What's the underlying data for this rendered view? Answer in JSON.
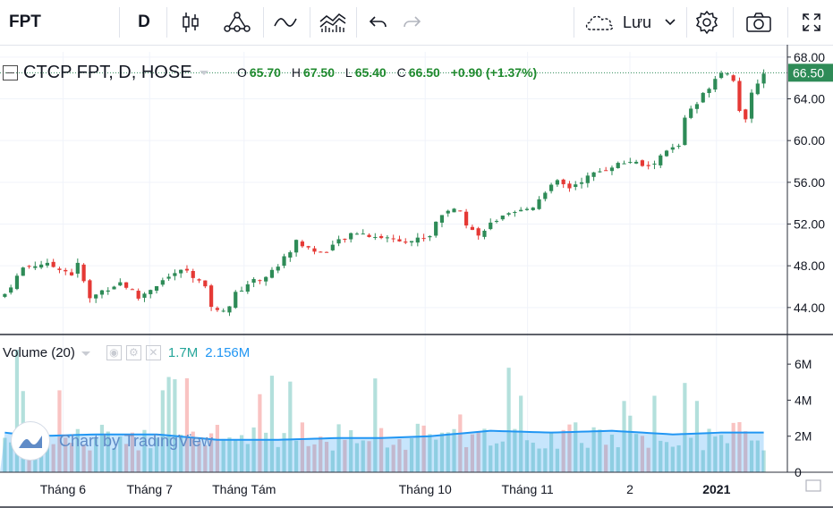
{
  "toolbar": {
    "symbol": "FPT",
    "interval": "D",
    "save_label": "Lưu"
  },
  "legend": {
    "title": "CTCP FPT, D, HOSE",
    "o_label": "O",
    "o": "65.70",
    "h_label": "H",
    "h": "67.50",
    "l_label": "L",
    "l": "65.40",
    "c_label": "C",
    "c": "66.50",
    "change": "+0.90 (+1.37%)"
  },
  "volume_legend": {
    "title": "Volume (20)",
    "value": "1.7M",
    "ma": "2.156M"
  },
  "watermark": {
    "text": "Chart by TradingView"
  },
  "colors": {
    "up": "#26a69a",
    "down": "#ef5350",
    "up_price_candle": "#2e8b57",
    "ma_line": "#2196f3",
    "last_price_bg": "#2e8b57"
  },
  "chart_data": {
    "type": "candlestick",
    "price_axis": {
      "ticks": [
        "68.00",
        "64.00",
        "60.00",
        "56.00",
        "52.00",
        "48.00",
        "44.00"
      ],
      "range": [
        41.5,
        68.5
      ]
    },
    "last_price_label": "66.50",
    "volume_axis": {
      "ticks": [
        "6M",
        "4M",
        "2M",
        "0"
      ],
      "range": [
        0,
        7
      ]
    },
    "time_labels": [
      "Tháng 6",
      "Tháng 7",
      "Tháng Tám",
      "Tháng 10",
      "Tháng 11",
      "2",
      "2021"
    ],
    "time_label_positions": [
      0.08,
      0.19,
      0.31,
      0.54,
      0.67,
      0.8,
      0.91
    ],
    "close_path": [
      [
        0,
        45.3
      ],
      [
        3,
        47.8
      ],
      [
        6,
        48.2
      ],
      [
        9,
        47.8
      ],
      [
        11,
        47.2
      ],
      [
        12,
        48.1
      ],
      [
        13,
        46.5
      ],
      [
        14,
        44.8
      ],
      [
        16,
        45.6
      ],
      [
        19,
        46.4
      ],
      [
        21,
        45.6
      ],
      [
        22,
        44.9
      ],
      [
        24,
        45.8
      ],
      [
        26,
        46.6
      ],
      [
        28,
        47.3
      ],
      [
        30,
        47.6
      ],
      [
        32,
        46.5
      ],
      [
        33,
        45.8
      ],
      [
        34,
        44.2
      ],
      [
        35,
        43.6
      ],
      [
        37,
        44.2
      ],
      [
        38,
        45.3
      ],
      [
        40,
        46.3
      ],
      [
        43,
        47.0
      ],
      [
        45,
        48.0
      ],
      [
        47,
        49.5
      ],
      [
        48,
        50.3
      ],
      [
        50,
        49.7
      ],
      [
        52,
        49.2
      ],
      [
        55,
        50.3
      ],
      [
        58,
        51.2
      ],
      [
        61,
        50.8
      ],
      [
        64,
        50.6
      ],
      [
        67,
        50.4
      ],
      [
        70,
        50.9
      ],
      [
        71,
        52.3
      ],
      [
        73,
        53.4
      ],
      [
        75,
        53.2
      ],
      [
        76,
        52.1
      ],
      [
        78,
        50.8
      ],
      [
        79,
        51.6
      ],
      [
        81,
        52.4
      ],
      [
        84,
        53.0
      ],
      [
        87,
        53.7
      ],
      [
        89,
        55.2
      ],
      [
        91,
        56.0
      ],
      [
        93,
        55.5
      ],
      [
        95,
        56.2
      ],
      [
        97,
        56.8
      ],
      [
        100,
        57.6
      ],
      [
        103,
        58.0
      ],
      [
        106,
        57.4
      ],
      [
        107,
        57.9
      ],
      [
        109,
        59.0
      ],
      [
        111,
        59.5
      ],
      [
        112,
        62.3
      ],
      [
        114,
        63.5
      ],
      [
        115,
        64.4
      ],
      [
        117,
        66.0
      ],
      [
        118,
        66.7
      ],
      [
        119,
        66.4
      ],
      [
        120,
        65.9
      ],
      [
        121,
        63.0
      ],
      [
        122,
        61.8
      ],
      [
        123,
        64.4
      ],
      [
        124,
        65.6
      ],
      [
        125,
        66.5
      ]
    ],
    "volume_path": [
      [
        0,
        2.2
      ],
      [
        5,
        2.0
      ],
      [
        15,
        2.1
      ],
      [
        25,
        2.1
      ],
      [
        35,
        1.8
      ],
      [
        45,
        1.8
      ],
      [
        55,
        1.9
      ],
      [
        62,
        1.9
      ],
      [
        70,
        2.0
      ],
      [
        80,
        2.3
      ],
      [
        90,
        2.2
      ],
      [
        100,
        2.3
      ],
      [
        110,
        2.1
      ],
      [
        118,
        2.2
      ],
      [
        125,
        2.2
      ]
    ]
  }
}
